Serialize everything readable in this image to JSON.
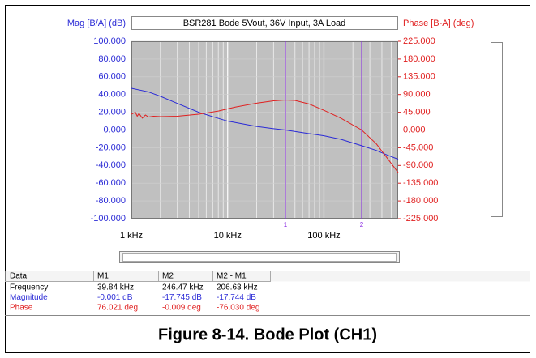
{
  "chart_data": {
    "type": "line",
    "title": "BSR281 Bode 5Vout, 36V Input, 3A Load",
    "y_label": "Mag [B/A] (dB)",
    "y2_label": "Phase [B-A] (deg)",
    "log_x": true,
    "grid": true,
    "xlim": [
      1000,
      590000
    ],
    "xticks": [
      {
        "value": 1000,
        "label": "1 kHz"
      },
      {
        "value": 10000,
        "label": "10 kHz"
      },
      {
        "value": 100000,
        "label": "100 kHz"
      }
    ],
    "xgrid_minor": [
      2000,
      3000,
      4000,
      5000,
      6000,
      7000,
      8000,
      9000,
      20000,
      30000,
      40000,
      50000,
      60000,
      70000,
      80000,
      90000,
      200000,
      300000,
      400000,
      500000
    ],
    "ylim": [
      -100,
      100
    ],
    "yticks": [
      {
        "value": 100,
        "label": "100.000"
      },
      {
        "value": 80,
        "label": "80.000"
      },
      {
        "value": 60,
        "label": "60.000"
      },
      {
        "value": 40,
        "label": "40.000"
      },
      {
        "value": 20,
        "label": "20.000"
      },
      {
        "value": 0,
        "label": "0.000"
      },
      {
        "value": -20,
        "label": "-20.000"
      },
      {
        "value": -40,
        "label": "-40.000"
      },
      {
        "value": -60,
        "label": "-60.000"
      },
      {
        "value": -80,
        "label": "-80.000"
      },
      {
        "value": -100,
        "label": "-100.000"
      }
    ],
    "y2lim": [
      -225,
      225
    ],
    "y2ticks": [
      {
        "value": 225,
        "label": "225.000"
      },
      {
        "value": 180,
        "label": "180.000"
      },
      {
        "value": 135,
        "label": "135.000"
      },
      {
        "value": 90,
        "label": "90.000"
      },
      {
        "value": 45,
        "label": "45.000"
      },
      {
        "value": 0,
        "label": "0.000"
      },
      {
        "value": -45,
        "label": "-45.000"
      },
      {
        "value": -90,
        "label": "-90.000"
      },
      {
        "value": -135,
        "label": "-135.000"
      },
      {
        "value": -180,
        "label": "-180.000"
      },
      {
        "value": -225,
        "label": "-225.000"
      }
    ],
    "series": [
      {
        "name": "Magnitude",
        "color": "#2b2bd6",
        "axis": "y",
        "x": [
          1000,
          1500,
          2000,
          3000,
          5000,
          7000,
          10000,
          15000,
          20000,
          30000,
          39840,
          60000,
          100000,
          150000,
          246470,
          350000,
          450000,
          590000
        ],
        "values": [
          47,
          43,
          38,
          30,
          20,
          15,
          10,
          6.5,
          4,
          1.5,
          0,
          -3,
          -6.5,
          -10.5,
          -17.7,
          -23,
          -28,
          -33
        ]
      },
      {
        "name": "Phase",
        "color": "#e02020",
        "axis": "y2",
        "x": [
          1000,
          1100,
          1150,
          1200,
          1300,
          1400,
          1500,
          1700,
          2000,
          3000,
          5000,
          8000,
          12000,
          20000,
          30000,
          39840,
          50000,
          70000,
          100000,
          150000,
          246470,
          350000,
          450000,
          590000
        ],
        "values": [
          40,
          45,
          35,
          42,
          30,
          38,
          33,
          35,
          34,
          35,
          40,
          48,
          58,
          68,
          74,
          76,
          75,
          66,
          50,
          30,
          0,
          -35,
          -70,
          -108
        ]
      }
    ],
    "markers": [
      {
        "label": "1",
        "x": 39840
      },
      {
        "label": "2",
        "x": 246470
      }
    ],
    "marker_color": "#8a2be2"
  },
  "table": {
    "header": [
      "Data",
      "M1",
      "M2",
      "M2 - M1"
    ],
    "rows": [
      {
        "color": "#000000",
        "cells": [
          "Frequency",
          "39.84 kHz",
          "246.47 kHz",
          "206.63 kHz"
        ]
      },
      {
        "color": "#2b2bd6",
        "cells": [
          "Magnitude",
          "-0.001 dB",
          "-17.745 dB",
          "-17.744 dB"
        ]
      },
      {
        "color": "#e02020",
        "cells": [
          "Phase",
          "76.021 deg",
          "-0.009 deg",
          "-76.030 deg"
        ]
      }
    ]
  },
  "caption": "Figure 8-14. Bode Plot (CH1)"
}
